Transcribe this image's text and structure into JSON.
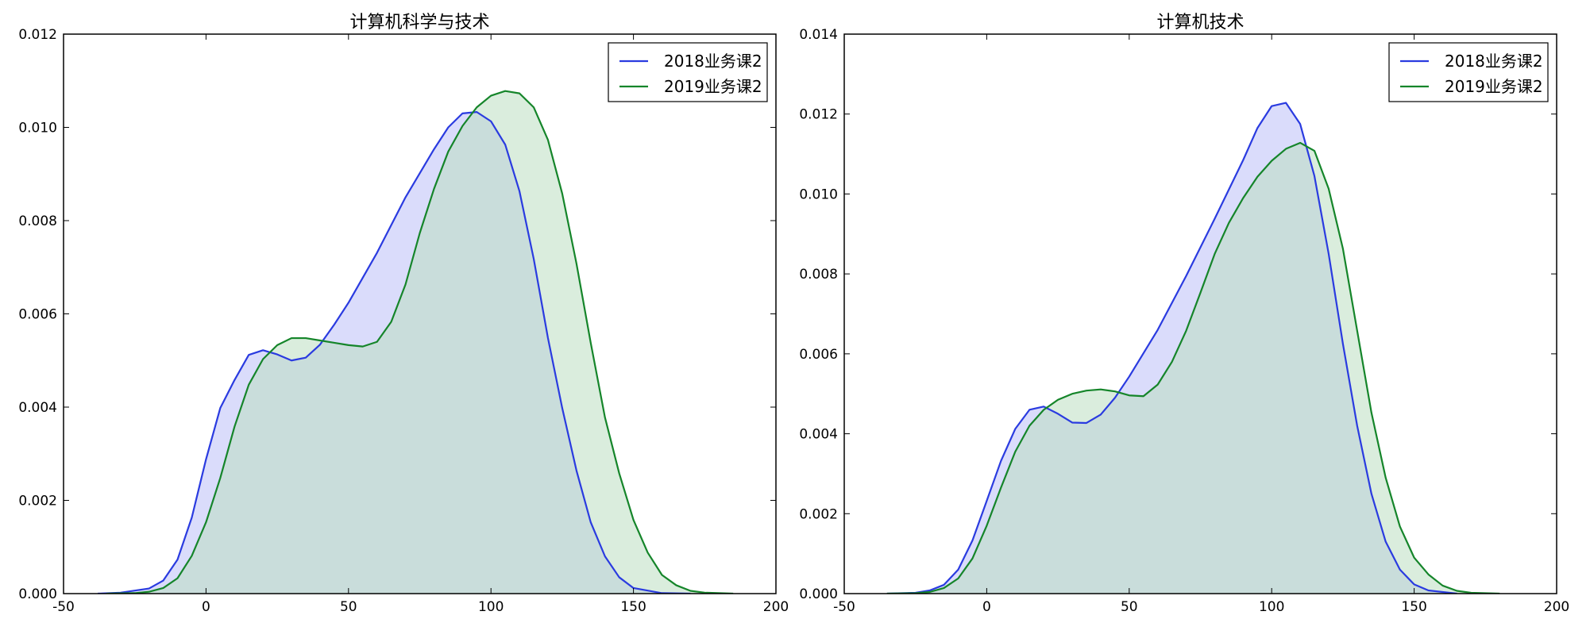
{
  "chart_data": [
    {
      "type": "area",
      "title": "计算机科学与技术",
      "xlabel": "",
      "ylabel": "",
      "xlim": [
        -50,
        200
      ],
      "ylim": [
        0,
        0.012
      ],
      "xticks": [
        -50,
        0,
        50,
        100,
        150,
        200
      ],
      "yticks": [
        0.0,
        0.002,
        0.004,
        0.006,
        0.008,
        0.01,
        0.012
      ],
      "ytick_decimals": 3,
      "grid": false,
      "legend_position": "top-right",
      "series": [
        {
          "name": "2018业务课2",
          "color": "#2a3be0",
          "fill": "#bcbff8",
          "points": [
            [
              -38,
              0.0
            ],
            [
              -30,
              2e-05
            ],
            [
              -20,
              0.00011
            ],
            [
              -15,
              0.00028
            ],
            [
              -10,
              0.00073
            ],
            [
              -5,
              0.00163
            ],
            [
              0,
              0.00288
            ],
            [
              5,
              0.00398
            ],
            [
              10,
              0.00458
            ],
            [
              15,
              0.00512
            ],
            [
              20,
              0.00522
            ],
            [
              25,
              0.00513
            ],
            [
              30,
              0.005
            ],
            [
              35,
              0.00506
            ],
            [
              40,
              0.00534
            ],
            [
              45,
              0.00577
            ],
            [
              50,
              0.00624
            ],
            [
              60,
              0.00731
            ],
            [
              70,
              0.0085
            ],
            [
              80,
              0.00953
            ],
            [
              85,
              0.01
            ],
            [
              90,
              0.0103
            ],
            [
              95,
              0.01033
            ],
            [
              100,
              0.01013
            ],
            [
              105,
              0.00963
            ],
            [
              110,
              0.00863
            ],
            [
              115,
              0.00718
            ],
            [
              120,
              0.00548
            ],
            [
              125,
              0.00398
            ],
            [
              130,
              0.00264
            ],
            [
              135,
              0.00153
            ],
            [
              140,
              0.0008
            ],
            [
              145,
              0.00035
            ],
            [
              150,
              0.00012
            ],
            [
              160,
              1e-05
            ],
            [
              170,
              0.0
            ]
          ]
        },
        {
          "name": "2019业务课2",
          "color": "#15852a",
          "fill": "#bbdfc1",
          "points": [
            [
              -35,
              0.0
            ],
            [
              -25,
              1e-05
            ],
            [
              -20,
              4e-05
            ],
            [
              -15,
              0.00012
            ],
            [
              -10,
              0.00033
            ],
            [
              -5,
              0.00081
            ],
            [
              0,
              0.00153
            ],
            [
              5,
              0.00248
            ],
            [
              10,
              0.00358
            ],
            [
              15,
              0.00448
            ],
            [
              20,
              0.00503
            ],
            [
              25,
              0.00533
            ],
            [
              30,
              0.00548
            ],
            [
              35,
              0.00548
            ],
            [
              40,
              0.00543
            ],
            [
              45,
              0.00538
            ],
            [
              50,
              0.00533
            ],
            [
              55,
              0.0053
            ],
            [
              60,
              0.0054
            ],
            [
              65,
              0.00583
            ],
            [
              70,
              0.00663
            ],
            [
              75,
              0.00773
            ],
            [
              80,
              0.00868
            ],
            [
              85,
              0.00948
            ],
            [
              90,
              0.01003
            ],
            [
              95,
              0.01043
            ],
            [
              100,
              0.01068
            ],
            [
              105,
              0.01078
            ],
            [
              110,
              0.01073
            ],
            [
              115,
              0.01043
            ],
            [
              120,
              0.00973
            ],
            [
              125,
              0.00858
            ],
            [
              130,
              0.00708
            ],
            [
              135,
              0.00538
            ],
            [
              140,
              0.00378
            ],
            [
              145,
              0.00258
            ],
            [
              150,
              0.00158
            ],
            [
              155,
              0.00088
            ],
            [
              160,
              0.0004
            ],
            [
              165,
              0.00018
            ],
            [
              170,
              6e-05
            ],
            [
              175,
              2e-05
            ],
            [
              185,
              0.0
            ]
          ]
        }
      ]
    },
    {
      "type": "area",
      "title": "计算机技术",
      "xlabel": "",
      "ylabel": "",
      "xlim": [
        -50,
        200
      ],
      "ylim": [
        0,
        0.014
      ],
      "xticks": [
        -50,
        0,
        50,
        100,
        150,
        200
      ],
      "yticks": [
        0.0,
        0.002,
        0.004,
        0.006,
        0.008,
        0.01,
        0.012,
        0.014
      ],
      "ytick_decimals": 3,
      "grid": false,
      "legend_position": "top-right",
      "series": [
        {
          "name": "2018业务课2",
          "color": "#2a3be0",
          "fill": "#bcbff8",
          "points": [
            [
              -35,
              0.0
            ],
            [
              -25,
              2e-05
            ],
            [
              -20,
              8e-05
            ],
            [
              -15,
              0.00022
            ],
            [
              -10,
              0.0006
            ],
            [
              -5,
              0.00133
            ],
            [
              0,
              0.00232
            ],
            [
              5,
              0.00332
            ],
            [
              10,
              0.00412
            ],
            [
              15,
              0.0046
            ],
            [
              20,
              0.00468
            ],
            [
              25,
              0.0045
            ],
            [
              30,
              0.00428
            ],
            [
              35,
              0.00427
            ],
            [
              40,
              0.00448
            ],
            [
              45,
              0.0049
            ],
            [
              50,
              0.00543
            ],
            [
              60,
              0.0066
            ],
            [
              70,
              0.00795
            ],
            [
              80,
              0.00938
            ],
            [
              90,
              0.01085
            ],
            [
              95,
              0.01165
            ],
            [
              100,
              0.0122
            ],
            [
              105,
              0.01228
            ],
            [
              110,
              0.01175
            ],
            [
              115,
              0.01045
            ],
            [
              120,
              0.0085
            ],
            [
              125,
              0.00625
            ],
            [
              130,
              0.0042
            ],
            [
              135,
              0.0025
            ],
            [
              140,
              0.0013
            ],
            [
              145,
              0.0006
            ],
            [
              150,
              0.00023
            ],
            [
              155,
              8e-05
            ],
            [
              165,
              0.0
            ]
          ]
        },
        {
          "name": "2019业务课2",
          "color": "#15852a",
          "fill": "#bbdfc1",
          "points": [
            [
              -35,
              0.0
            ],
            [
              -25,
              1e-05
            ],
            [
              -20,
              4e-05
            ],
            [
              -15,
              0.00014
            ],
            [
              -10,
              0.00038
            ],
            [
              -5,
              0.00088
            ],
            [
              0,
              0.0017
            ],
            [
              5,
              0.00265
            ],
            [
              10,
              0.00355
            ],
            [
              15,
              0.0042
            ],
            [
              20,
              0.0046
            ],
            [
              25,
              0.00485
            ],
            [
              30,
              0.005
            ],
            [
              35,
              0.00508
            ],
            [
              40,
              0.00511
            ],
            [
              45,
              0.00506
            ],
            [
              50,
              0.00496
            ],
            [
              55,
              0.00494
            ],
            [
              60,
              0.00523
            ],
            [
              65,
              0.0058
            ],
            [
              70,
              0.00658
            ],
            [
              75,
              0.00753
            ],
            [
              80,
              0.0085
            ],
            [
              85,
              0.00928
            ],
            [
              90,
              0.0099
            ],
            [
              95,
              0.01043
            ],
            [
              100,
              0.01083
            ],
            [
              105,
              0.01113
            ],
            [
              110,
              0.01128
            ],
            [
              115,
              0.01108
            ],
            [
              120,
              0.01013
            ],
            [
              125,
              0.00863
            ],
            [
              130,
              0.00658
            ],
            [
              135,
              0.00453
            ],
            [
              140,
              0.0029
            ],
            [
              145,
              0.00168
            ],
            [
              150,
              0.0009
            ],
            [
              155,
              0.00048
            ],
            [
              160,
              0.0002
            ],
            [
              165,
              7e-05
            ],
            [
              170,
              2e-05
            ],
            [
              180,
              0.0
            ]
          ]
        }
      ]
    }
  ]
}
